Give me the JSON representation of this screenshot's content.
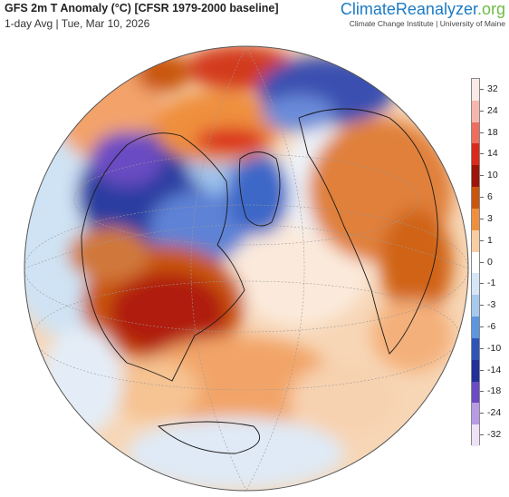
{
  "header": {
    "title": "GFS 2m T Anomaly (°C) [CFSR 1979-2000 baseline]",
    "subtitle": "1-day Avg | Tue, Mar 10, 2026"
  },
  "brand": {
    "name_part1": "Climate",
    "name_part2": "Reanalyzer",
    "name_part3": ".org",
    "sub": "Climate Change Institute | University of Maine"
  },
  "map": {
    "projection": "orthographic (North Atlantic / North America view)",
    "regions": [
      {
        "name": "eastern-us",
        "anomaly_level": "very-warm",
        "color": "#b01c10"
      },
      {
        "name": "canada-arctic",
        "anomaly_level": "very-cold",
        "color": "#2b3ea0"
      },
      {
        "name": "greenland",
        "anomaly_level": "cold",
        "color": "#3d67c8"
      },
      {
        "name": "northern-russia",
        "anomaly_level": "cold",
        "color": "#3a4fb0"
      },
      {
        "name": "europe",
        "anomaly_level": "warm",
        "color": "#e0803a"
      },
      {
        "name": "north-atlantic",
        "anomaly_level": "slightly-warm",
        "color": "#f6c8a0"
      },
      {
        "name": "arctic-ocean",
        "anomaly_level": "very-warm",
        "color": "#d33a1e"
      },
      {
        "name": "pacific",
        "anomaly_level": "slightly-cool",
        "color": "#cfe3f4"
      }
    ]
  },
  "colorbar": {
    "levels": [
      {
        "label": "32",
        "color": "#fbe9e6"
      },
      {
        "label": "24",
        "color": "#f5b6ad"
      },
      {
        "label": "18",
        "color": "#ee6e5e"
      },
      {
        "label": "14",
        "color": "#d92a1b"
      },
      {
        "label": "10",
        "color": "#9e1408"
      },
      {
        "label": "6",
        "color": "#c9560f"
      },
      {
        "label": "3",
        "color": "#ef8f3e"
      },
      {
        "label": "1",
        "color": "#f8cda4"
      },
      {
        "label": "0",
        "color": "#ffffff"
      },
      {
        "label": "-1",
        "color": "#d6e6f6"
      },
      {
        "label": "-3",
        "color": "#a6c9ee"
      },
      {
        "label": "-6",
        "color": "#5d95df"
      },
      {
        "label": "-10",
        "color": "#2f54b8"
      },
      {
        "label": "-14",
        "color": "#22309a"
      },
      {
        "label": "-18",
        "color": "#6a4bc3"
      },
      {
        "label": "-24",
        "color": "#b79be4"
      },
      {
        "label": "-32",
        "color": "#efe2f6"
      }
    ]
  }
}
